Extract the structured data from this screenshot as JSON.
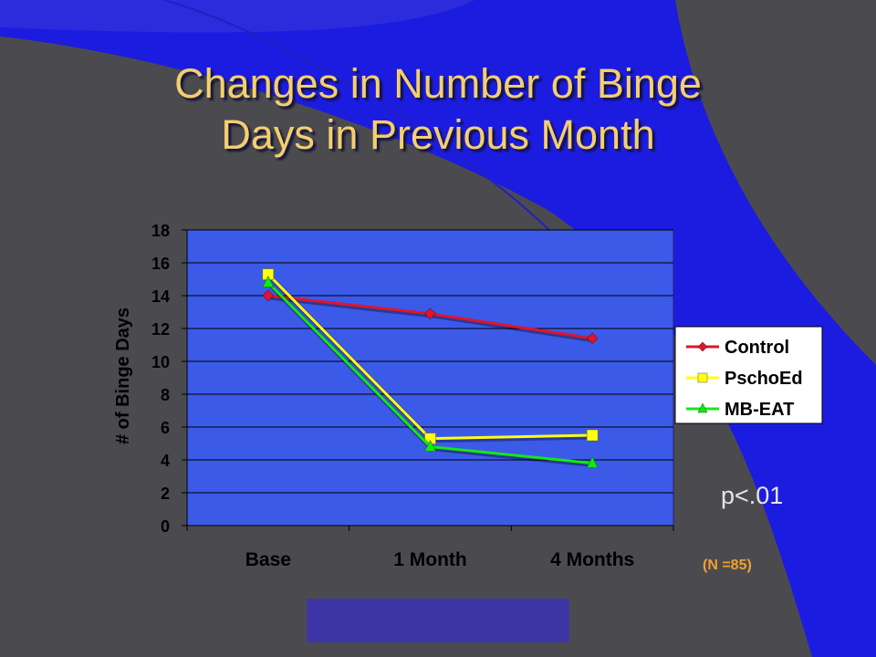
{
  "slide": {
    "title_line1": "Changes in Number of Binge",
    "title_line2": "Days in Previous Month",
    "p_value": "p<.01",
    "sample_note": "(N =85)"
  },
  "colors": {
    "background": "#4b4b4f",
    "accent_blue": "#1c1ce0",
    "plot_area": "#3c5ae8",
    "title": "#f5cf6e"
  },
  "chart_data": {
    "type": "line",
    "title": "",
    "xlabel": "",
    "ylabel": "# of Binge Days",
    "categories": [
      "Base",
      "1 Month",
      "4 Months"
    ],
    "ylim": [
      0,
      18
    ],
    "yticks": [
      0,
      2,
      4,
      6,
      8,
      10,
      12,
      14,
      16,
      18
    ],
    "grid": true,
    "legend": "right",
    "series": [
      {
        "name": "Control",
        "values": [
          14.0,
          12.9,
          11.4
        ],
        "color": "#e0142c",
        "marker": "diamond"
      },
      {
        "name": "PschoEd",
        "values": [
          15.3,
          5.3,
          5.5
        ],
        "color": "#ffff14",
        "marker": "square"
      },
      {
        "name": "MB-EAT",
        "values": [
          14.8,
          4.8,
          3.8
        ],
        "color": "#14e814",
        "marker": "triangle"
      }
    ]
  }
}
